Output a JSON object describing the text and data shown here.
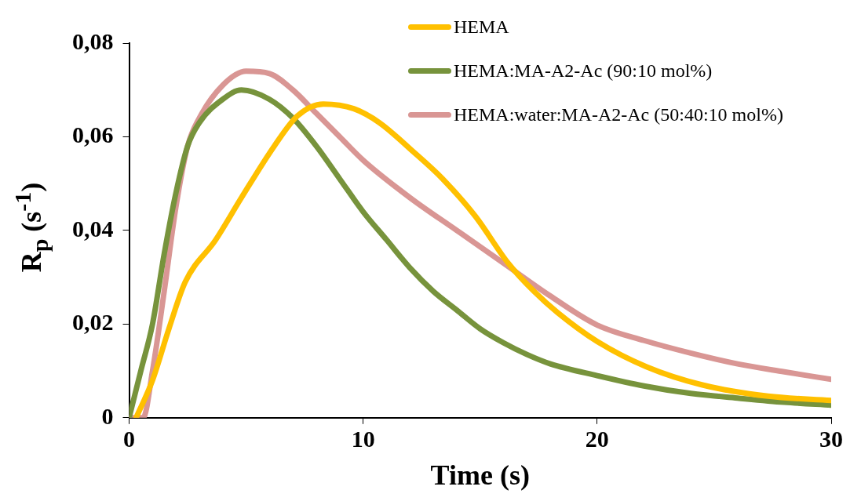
{
  "chart_data": {
    "type": "line",
    "xlabel": "Time (s)",
    "ylabel": "R$_{p}$ (s$^{-1}$)",
    "xlim": [
      0,
      30
    ],
    "xticks": [
      0,
      10,
      20,
      30
    ],
    "ylim": [
      0,
      0.08
    ],
    "yticks": [
      {
        "value": 0,
        "label": "0"
      },
      {
        "value": 0.02,
        "label": "0,02"
      },
      {
        "value": 0.04,
        "label": "0,04"
      },
      {
        "value": 0.06,
        "label": "0,06"
      },
      {
        "value": 0.08,
        "label": "0,08"
      }
    ],
    "grid": false,
    "legend": "top right",
    "marker": "none",
    "line_style": "solid",
    "series": [
      {
        "name": "HEMA",
        "color": "#ffc000",
        "x": [
          0.3,
          1,
          1.7,
          2.4,
          3.7,
          4.8,
          6.2,
          7.2,
          8.3,
          9.6,
          10.7,
          12.1,
          13.4,
          14.8,
          16.2,
          17.3,
          18.3,
          20,
          22.1,
          24.5,
          27.3,
          30
        ],
        "values": [
          0,
          0.008,
          0.019,
          0.029,
          0.038,
          0.047,
          0.058,
          0.0645,
          0.067,
          0.066,
          0.063,
          0.057,
          0.051,
          0.043,
          0.033,
          0.027,
          0.0225,
          0.0163,
          0.0109,
          0.007,
          0.0046,
          0.0037
        ]
      },
      {
        "name": "HEMA:MA-A2-Ac (90:10 mol%)",
        "color": "#77933c",
        "x": [
          0,
          0.5,
          1,
          1.5,
          2,
          2.5,
          3,
          4,
          4.8,
          6,
          7,
          8,
          9,
          10,
          11,
          12,
          13,
          14,
          15,
          16,
          17,
          18,
          20,
          22,
          24,
          26,
          28,
          30
        ],
        "values": [
          0,
          0.01,
          0.02,
          0.035,
          0.048,
          0.058,
          0.063,
          0.068,
          0.07,
          0.068,
          0.064,
          0.058,
          0.051,
          0.044,
          0.038,
          0.032,
          0.027,
          0.023,
          0.019,
          0.016,
          0.0135,
          0.0115,
          0.009,
          0.0068,
          0.0052,
          0.0042,
          0.0033,
          0.0027
        ]
      },
      {
        "name": "HEMA:water:MA-A2-Ac (50:40:10 mol%)",
        "color": "#d99694",
        "x": [
          0,
          0.6,
          1,
          1.5,
          2,
          2.5,
          3,
          4,
          5,
          6,
          7,
          8,
          9,
          10,
          12,
          14,
          16,
          18,
          20,
          22,
          24,
          26,
          28,
          30
        ],
        "values": [
          0,
          0,
          0.01,
          0.027,
          0.045,
          0.058,
          0.064,
          0.071,
          0.074,
          0.0735,
          0.07,
          0.065,
          0.06,
          0.055,
          0.047,
          0.04,
          0.033,
          0.026,
          0.0198,
          0.0165,
          0.0138,
          0.0115,
          0.0098,
          0.0082
        ]
      }
    ]
  }
}
